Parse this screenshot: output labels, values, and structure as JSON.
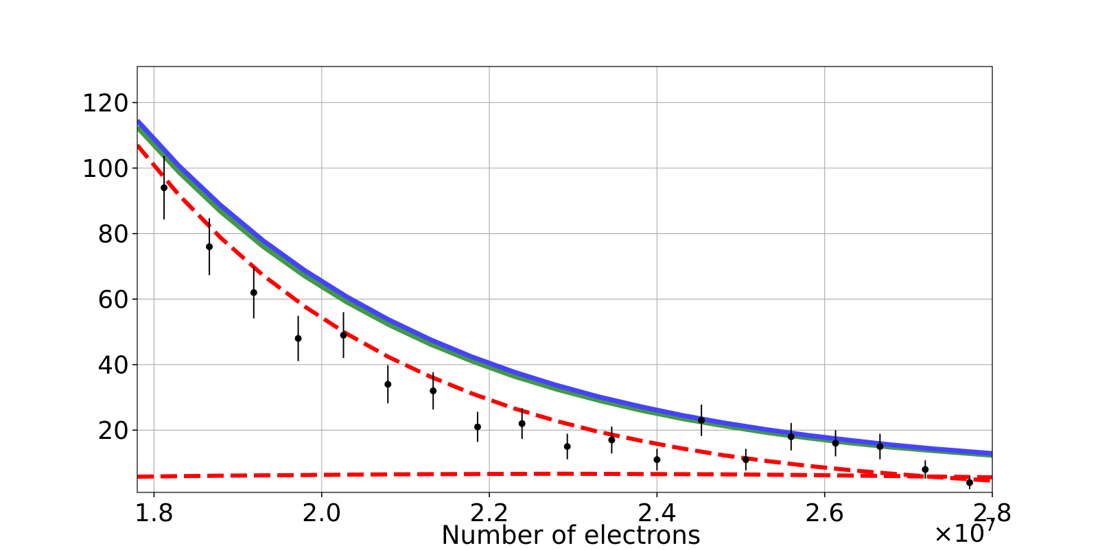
{
  "chart_data": {
    "type": "line",
    "title": "",
    "xlabel": "Number of electrons",
    "ylabel": "",
    "x_offset_label": "×10",
    "x_offset_exponent": "7",
    "xlim": [
      1.78,
      2.8
    ],
    "ylim": [
      1,
      131
    ],
    "grid": true,
    "legend": null,
    "x_ticks": [
      1.8,
      2.0,
      2.2,
      2.4,
      2.6,
      2.8
    ],
    "x_tick_labels": [
      "1.8",
      "2.0",
      "2.2",
      "2.4",
      "2.6",
      "2.8"
    ],
    "y_ticks": [
      20,
      40,
      60,
      80,
      100,
      120
    ],
    "y_tick_labels": [
      "20",
      "40",
      "60",
      "80",
      "100",
      "120"
    ],
    "data_points": {
      "style": "black points with vertical error bars",
      "color": "#000000",
      "x": [
        1.812,
        1.866,
        1.919,
        1.972,
        2.026,
        2.079,
        2.133,
        2.186,
        2.239,
        2.293,
        2.346,
        2.4,
        2.453,
        2.506,
        2.56,
        2.613,
        2.666,
        2.72,
        2.773
      ],
      "y": [
        94,
        76,
        62,
        48,
        49,
        34,
        32,
        21,
        22,
        15,
        17,
        11,
        23,
        11,
        18,
        16,
        15,
        8,
        4
      ],
      "err": [
        9.7,
        8.7,
        7.9,
        6.9,
        7.0,
        5.8,
        5.7,
        4.6,
        4.7,
        3.9,
        4.1,
        3.3,
        4.8,
        3.3,
        4.2,
        4.0,
        3.9,
        2.8,
        2.0
      ]
    },
    "series": [
      {
        "style": "solid",
        "color": "#4444ff",
        "x": [
          1.78,
          1.83,
          1.88,
          1.93,
          1.98,
          2.03,
          2.08,
          2.13,
          2.18,
          2.23,
          2.28,
          2.33,
          2.38,
          2.43,
          2.48,
          2.53,
          2.58,
          2.63,
          2.68,
          2.73,
          2.8
        ],
        "y": [
          114.5,
          100.6,
          88.5,
          77.9,
          68.7,
          60.7,
          53.7,
          47.6,
          42.3,
          37.7,
          33.7,
          30.2,
          27.2,
          24.5,
          22.2,
          20.2,
          18.4,
          16.9,
          15.5,
          14.3,
          12.9
        ]
      },
      {
        "style": "solid",
        "color": "#449944",
        "x": [
          1.78,
          1.83,
          1.88,
          1.93,
          1.98,
          2.03,
          2.08,
          2.13,
          2.18,
          2.23,
          2.28,
          2.33,
          2.38,
          2.43,
          2.48,
          2.53,
          2.58,
          2.63,
          2.68,
          2.73,
          2.8
        ],
        "y": [
          112.5,
          98.7,
          86.6,
          76.1,
          67.0,
          59.1,
          52.2,
          46.2,
          41.0,
          36.4,
          32.5,
          29.1,
          26.1,
          23.5,
          21.3,
          19.3,
          17.6,
          16.1,
          14.8,
          13.7,
          12.3
        ]
      },
      {
        "style": "dashed",
        "color": "#ff0000",
        "x": [
          1.78,
          1.83,
          1.88,
          1.93,
          1.98,
          2.03,
          2.08,
          2.13,
          2.18,
          2.23,
          2.28,
          2.33,
          2.38,
          2.43,
          2.48,
          2.53,
          2.58,
          2.63,
          2.68,
          2.73,
          2.8
        ],
        "y": [
          107.0,
          91.7,
          78.6,
          67.3,
          57.7,
          49.4,
          42.3,
          36.3,
          31.1,
          26.6,
          22.8,
          19.5,
          16.8,
          14.4,
          12.3,
          10.6,
          9.1,
          7.8,
          6.7,
          5.7,
          4.6
        ]
      },
      {
        "style": "dashed",
        "color": "#ff0000",
        "x": [
          1.78,
          1.88,
          1.98,
          2.08,
          2.18,
          2.28,
          2.38,
          2.48,
          2.58,
          2.68,
          2.8
        ],
        "y": [
          5.8,
          6.1,
          6.3,
          6.5,
          6.6,
          6.7,
          6.6,
          6.5,
          6.3,
          6.0,
          5.6
        ]
      }
    ]
  }
}
